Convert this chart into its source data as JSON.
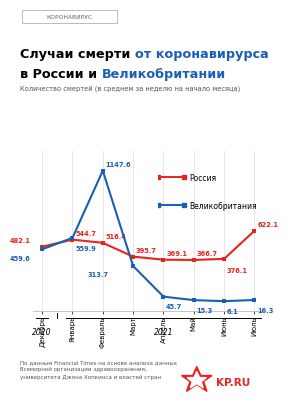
{
  "tag": "КОРОНАВИРУС",
  "title_line1_black": "Случаи смерти ",
  "title_line1_blue": "от коронавирурса",
  "title_line2_black": "в России и ",
  "title_line2_blue": "Великобритании",
  "subtitle": "Количество смертей (в среднем за неделю на начало месяца)",
  "months": [
    "Декабрь",
    "Январь",
    "Февраль",
    "Март",
    "Апрель",
    "Май",
    "Июнь",
    "Июль"
  ],
  "year_labels": [
    "2020",
    "2021"
  ],
  "russia": [
    482.1,
    544.7,
    516.4,
    395.7,
    369.1,
    366.7,
    376.1,
    622.1
  ],
  "uk": [
    459.6,
    559.9,
    1147.6,
    313.7,
    45.7,
    15.3,
    6.1,
    16.3
  ],
  "russia_color": "#e8231a",
  "uk_color": "#1a5eb8",
  "background_color": "#ffffff",
  "footnote": "По данным Financial Times на основе анализа данных\nВсемирной организации здравоохранения,\nуниверситета Джона Хопкинса и властей стран",
  "legend_russia": "Россия",
  "legend_uk": "Великобритания"
}
